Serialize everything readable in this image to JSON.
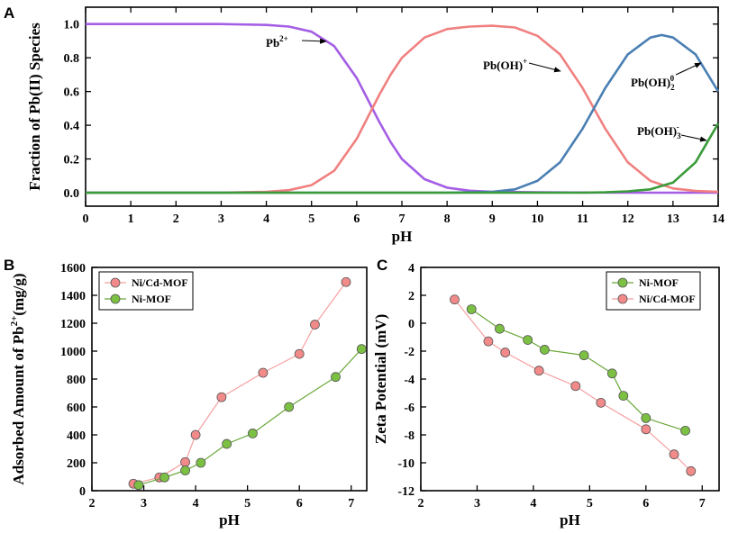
{
  "chart_data": [
    {
      "id": "A",
      "type": "line",
      "panel_label": "A",
      "xlabel": "pH",
      "ylabel": "Fraction of Pb(II) Species",
      "xlim": [
        0,
        14
      ],
      "ylim": [
        -0.08,
        1.1
      ],
      "xticks": [
        "0",
        "1",
        "2",
        "3",
        "4",
        "5",
        "6",
        "7",
        "8",
        "9",
        "10",
        "11",
        "12",
        "13",
        "14"
      ],
      "yticks": [
        "0.0",
        "0.2",
        "0.4",
        "0.6",
        "0.8",
        "1.0"
      ],
      "series": [
        {
          "name": "Pb2+",
          "color": "#a45ee5",
          "x": [
            0,
            1,
            2,
            3,
            4,
            4.5,
            5,
            5.5,
            6,
            6.25,
            6.5,
            6.75,
            7,
            7.5,
            8,
            8.5,
            9,
            10,
            11,
            12,
            13,
            14
          ],
          "y": [
            1.0,
            1.0,
            1.0,
            1.0,
            0.995,
            0.985,
            0.955,
            0.87,
            0.68,
            0.55,
            0.42,
            0.3,
            0.2,
            0.08,
            0.03,
            0.012,
            0.005,
            0.002,
            0.001,
            0,
            0,
            0
          ]
        },
        {
          "name": "Pb(OH)+",
          "color": "#f08080",
          "x": [
            0,
            1,
            2,
            3,
            4,
            4.5,
            5,
            5.5,
            6,
            6.25,
            6.5,
            6.75,
            7,
            7.5,
            8,
            8.5,
            9,
            9.5,
            10,
            10.5,
            11,
            11.25,
            11.5,
            12,
            12.5,
            13,
            13.5,
            14
          ],
          "y": [
            0,
            0,
            0,
            0,
            0.005,
            0.015,
            0.045,
            0.13,
            0.32,
            0.45,
            0.58,
            0.7,
            0.8,
            0.92,
            0.97,
            0.985,
            0.99,
            0.98,
            0.93,
            0.82,
            0.62,
            0.5,
            0.38,
            0.18,
            0.07,
            0.025,
            0.01,
            0.005
          ]
        },
        {
          "name": "Pb(OH)2 0",
          "color": "#4a7fb3",
          "x": [
            0,
            8,
            9,
            9.5,
            10,
            10.5,
            11,
            11.25,
            11.5,
            12,
            12.5,
            12.75,
            13,
            13.5,
            14
          ],
          "y": [
            0,
            0,
            0.005,
            0.02,
            0.07,
            0.18,
            0.38,
            0.5,
            0.62,
            0.82,
            0.92,
            0.935,
            0.92,
            0.82,
            0.6
          ]
        },
        {
          "name": "Pb(OH)3 -",
          "color": "#3a9b3a",
          "x": [
            0,
            10,
            11,
            11.5,
            12,
            12.5,
            13,
            13.5,
            14
          ],
          "y": [
            0,
            0,
            0,
            0.002,
            0.008,
            0.02,
            0.06,
            0.18,
            0.41
          ]
        }
      ],
      "annotations": [
        {
          "base": "Pb",
          "sup": "2+",
          "sub": ""
        },
        {
          "base": "Pb(OH)",
          "sup": "+",
          "sub": ""
        },
        {
          "base": "Pb(OH)",
          "sup": "0",
          "sub": "2"
        },
        {
          "base": "Pb(OH)",
          "sup": "-",
          "sub": "3"
        }
      ]
    },
    {
      "id": "B",
      "type": "line",
      "panel_label": "B",
      "xlabel": "pH",
      "ylabel_main": "Adsorbed Amount of Pb",
      "ylabel_sup": "2+",
      "ylabel_tail": "(mg/g)",
      "xlim": [
        2,
        7.3
      ],
      "ylim": [
        0,
        1600
      ],
      "xticks": [
        "2",
        "3",
        "4",
        "5",
        "6",
        "7"
      ],
      "yticks": [
        "0",
        "200",
        "400",
        "600",
        "800",
        "1000",
        "1200",
        "1400",
        "1600"
      ],
      "legend": [
        "Ni/Cd-MOF",
        "Ni-MOF"
      ],
      "series": [
        {
          "name": "Ni/Cd-MOF",
          "color": "#f6a0a0",
          "marker": "#f28a8a",
          "x": [
            2.8,
            3.3,
            3.8,
            4.0,
            4.5,
            5.3,
            6.0,
            6.3,
            6.9
          ],
          "y": [
            50,
            95,
            205,
            400,
            670,
            845,
            980,
            1190,
            1495
          ]
        },
        {
          "name": "Ni-MOF",
          "color": "#6aa83a",
          "marker": "#7cc043",
          "x": [
            2.9,
            3.4,
            3.8,
            4.1,
            4.6,
            5.1,
            5.8,
            6.7,
            7.2
          ],
          "y": [
            40,
            95,
            145,
            200,
            335,
            410,
            600,
            815,
            1015
          ]
        }
      ]
    },
    {
      "id": "C",
      "type": "line",
      "panel_label": "C",
      "xlabel": "pH",
      "ylabel": "Zeta Potential (mV)",
      "xlim": [
        2,
        7.3
      ],
      "ylim": [
        -12,
        4
      ],
      "xticks": [
        "2",
        "3",
        "4",
        "5",
        "6",
        "7"
      ],
      "yticks": [
        "-12",
        "-10",
        "-8",
        "-6",
        "-4",
        "-2",
        "0",
        "2",
        "4"
      ],
      "legend": [
        "Ni-MOF",
        "Ni/Cd-MOF"
      ],
      "series": [
        {
          "name": "Ni-MOF",
          "color": "#6aa83a",
          "marker": "#7cc043",
          "x": [
            2.9,
            3.4,
            3.9,
            4.2,
            4.9,
            5.4,
            5.6,
            6.0,
            6.7
          ],
          "y": [
            1.0,
            -0.4,
            -1.2,
            -1.9,
            -2.3,
            -3.6,
            -5.2,
            -6.8,
            -7.7
          ]
        },
        {
          "name": "Ni/Cd-MOF",
          "color": "#f6a0a0",
          "marker": "#f28a8a",
          "x": [
            2.6,
            3.2,
            3.5,
            4.1,
            4.75,
            5.2,
            6.0,
            6.5,
            6.8
          ],
          "y": [
            1.7,
            -1.3,
            -2.1,
            -3.4,
            -4.5,
            -5.7,
            -7.6,
            -9.4,
            -10.6
          ]
        }
      ]
    }
  ]
}
